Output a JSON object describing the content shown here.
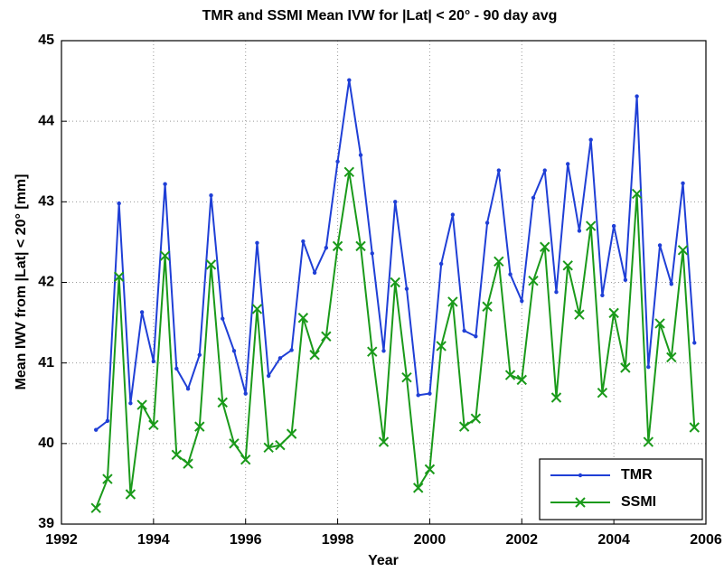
{
  "chart_data": {
    "type": "line",
    "title": "TMR and SSMI Mean IVW for |Lat| < 20° - 90 day avg",
    "xlabel": "Year",
    "ylabel": "Mean IWV from |Lat| < 20°  [mm]",
    "x": [
      1992.75,
      1993.0,
      1993.25,
      1993.5,
      1993.75,
      1994.0,
      1994.25,
      1994.5,
      1994.75,
      1995.0,
      1995.25,
      1995.5,
      1995.75,
      1996.0,
      1996.25,
      1996.5,
      1996.75,
      1997.0,
      1997.25,
      1997.5,
      1997.75,
      1998.0,
      1998.25,
      1998.5,
      1998.75,
      1999.0,
      1999.25,
      1999.5,
      1999.75,
      2000.0,
      2000.25,
      2000.5,
      2000.75,
      2001.0,
      2001.25,
      2001.5,
      2001.75,
      2002.0,
      2002.25,
      2002.5,
      2002.75,
      2003.0,
      2003.25,
      2003.5,
      2003.75,
      2004.0,
      2004.25,
      2004.5,
      2004.75,
      2005.0,
      2005.25,
      2005.5,
      2005.75
    ],
    "series": [
      {
        "name": "TMR",
        "color": "#1f3fd6",
        "marker": "dot",
        "values": [
          40.17,
          40.28,
          42.98,
          40.5,
          41.63,
          41.02,
          43.22,
          40.93,
          40.68,
          41.1,
          43.08,
          41.55,
          41.15,
          40.62,
          42.49,
          40.84,
          41.06,
          41.16,
          42.51,
          42.12,
          42.43,
          43.5,
          44.51,
          43.58,
          42.36,
          41.15,
          43.0,
          41.92,
          40.6,
          40.62,
          42.23,
          42.84,
          41.4,
          41.33,
          42.74,
          43.39,
          42.1,
          41.77,
          43.05,
          43.39,
          41.88,
          43.47,
          42.64,
          43.77,
          41.84,
          42.7,
          42.03,
          44.31,
          40.95,
          42.46,
          41.98,
          43.23,
          41.25
        ]
      },
      {
        "name": "SSMI",
        "color": "#1a9a1a",
        "marker": "x",
        "values": [
          39.2,
          39.56,
          42.07,
          39.37,
          40.48,
          40.23,
          42.33,
          39.86,
          39.75,
          40.21,
          42.22,
          40.51,
          40.0,
          39.8,
          41.67,
          39.95,
          39.98,
          40.12,
          41.56,
          41.1,
          41.33,
          42.45,
          43.37,
          42.45,
          41.14,
          40.02,
          42.0,
          40.82,
          39.45,
          39.68,
          41.21,
          41.76,
          40.21,
          40.31,
          41.7,
          42.26,
          40.85,
          40.79,
          42.02,
          42.44,
          40.57,
          42.21,
          41.6,
          42.7,
          40.63,
          41.62,
          40.94,
          43.1,
          40.02,
          41.49,
          41.07,
          42.4,
          40.2
        ]
      }
    ],
    "xlim": [
      1992,
      2006
    ],
    "xticks": [
      1992,
      1994,
      1996,
      1998,
      2000,
      2002,
      2004,
      2006
    ],
    "ylim": [
      39,
      45
    ],
    "yticks": [
      39,
      40,
      41,
      42,
      43,
      44,
      45
    ],
    "grid": true,
    "legend": "lower-right"
  }
}
